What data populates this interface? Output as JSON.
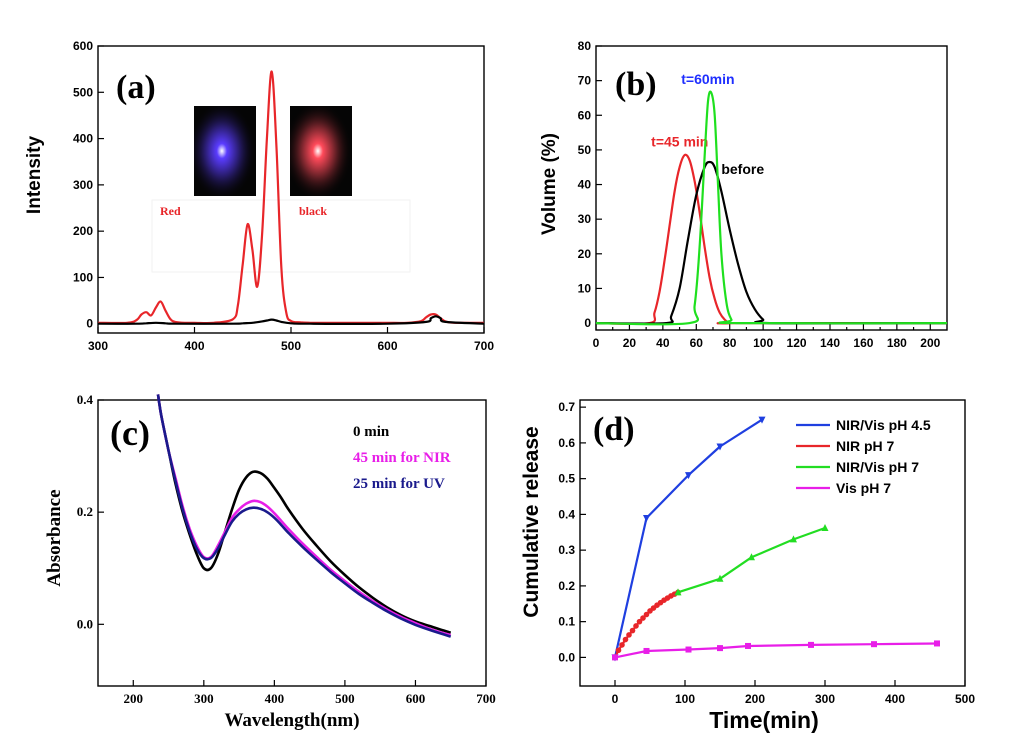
{
  "figure": {
    "panels": [
      "a",
      "b",
      "c",
      "d"
    ]
  },
  "chart_data": [
    {
      "id": "a",
      "type": "line",
      "panel_label": "(a)",
      "xlabel": "",
      "ylabel": "Intensity",
      "xlim": [
        300,
        700
      ],
      "ylim": [
        -20,
        600
      ],
      "xticks": [
        300,
        400,
        500,
        600,
        700
      ],
      "yticks": [
        0,
        100,
        200,
        300,
        400,
        500,
        600
      ],
      "inset_labels": [
        "Red",
        "black"
      ],
      "inset_glow_colors": [
        "#5a3cff",
        "#ff4a5a"
      ],
      "series": [
        {
          "name": "Red",
          "color": "#e8262a",
          "x": [
            300,
            330,
            340,
            345,
            350,
            355,
            360,
            365,
            370,
            375,
            380,
            390,
            400,
            420,
            440,
            445,
            450,
            455,
            460,
            465,
            470,
            475,
            480,
            485,
            490,
            495,
            500,
            510,
            520,
            540,
            560,
            580,
            600,
            620,
            635,
            640,
            645,
            650,
            655,
            660,
            670,
            700
          ],
          "y": [
            2,
            2,
            8,
            20,
            25,
            18,
            35,
            48,
            28,
            10,
            4,
            2,
            2,
            2,
            10,
            40,
            130,
            215,
            160,
            80,
            190,
            400,
            545,
            380,
            120,
            25,
            6,
            3,
            2,
            2,
            2,
            2,
            2,
            2,
            6,
            14,
            20,
            20,
            12,
            5,
            2,
            2
          ]
        },
        {
          "name": "black",
          "color": "#000000",
          "x": [
            300,
            340,
            350,
            360,
            370,
            380,
            440,
            450,
            460,
            470,
            475,
            480,
            485,
            490,
            500,
            520,
            600,
            640,
            645,
            650,
            655,
            660,
            700
          ],
          "y": [
            0,
            0,
            1,
            2,
            1,
            0,
            0,
            1,
            2,
            5,
            7,
            9,
            7,
            4,
            1,
            0,
            0,
            4,
            12,
            16,
            12,
            4,
            0
          ]
        }
      ]
    },
    {
      "id": "b",
      "type": "line",
      "panel_label": "(b)",
      "xlabel": "",
      "ylabel": "Volume (%)",
      "xlim": [
        0,
        210
      ],
      "ylim": [
        -2,
        80
      ],
      "xticks": [
        0,
        10,
        20,
        30,
        40,
        50,
        60,
        70,
        80,
        90,
        100,
        110,
        120,
        130,
        140,
        150,
        160,
        170,
        180,
        190,
        200
      ],
      "xticklabels": [
        "0",
        "",
        "20",
        "",
        "40",
        "",
        "60",
        "",
        "80",
        "",
        "100",
        "",
        "120",
        "",
        "140",
        "",
        "160",
        "",
        "180",
        "",
        "200"
      ],
      "yticks": [
        0,
        10,
        20,
        30,
        40,
        50,
        60,
        70,
        80
      ],
      "series": [
        {
          "name": "t=45 min",
          "color": "#e8262a",
          "label_at": [
            33,
            51
          ],
          "x": [
            0,
            32,
            35,
            38,
            41,
            44,
            47,
            50,
            53,
            56,
            59,
            62,
            65,
            68,
            71,
            74,
            77,
            80,
            83,
            210
          ],
          "y": [
            0,
            0,
            3,
            9,
            18,
            28,
            38,
            45,
            48.5,
            47,
            41,
            32,
            22,
            13,
            7,
            3,
            1,
            0,
            0,
            0
          ]
        },
        {
          "name": "before",
          "color": "#000000",
          "label_at": [
            75,
            43
          ],
          "x": [
            0,
            42,
            45,
            50,
            55,
            60,
            65,
            68,
            71,
            75,
            80,
            85,
            90,
            95,
            100,
            104,
            210
          ],
          "y": [
            0,
            0,
            2,
            10,
            24,
            37,
            45,
            46.5,
            45,
            38,
            27,
            17,
            9,
            4,
            1,
            0,
            0
          ]
        },
        {
          "name": "t=60min",
          "color": "#1fe01f",
          "label_at": [
            51,
            69
          ],
          "label_color": "#1f2fff",
          "x": [
            0,
            56,
            59,
            62,
            65,
            67,
            69,
            71,
            73,
            75,
            78,
            81,
            84,
            210
          ],
          "y": [
            0,
            0,
            5,
            22,
            48,
            64,
            66.5,
            60,
            40,
            20,
            6,
            1,
            0,
            0
          ]
        }
      ]
    },
    {
      "id": "c",
      "type": "line",
      "panel_label": "(c)",
      "xlabel": "Wavelength(nm)",
      "ylabel": "Absorbance",
      "xlim": [
        150,
        700
      ],
      "ylim": [
        -0.11,
        0.4
      ],
      "xticks": [
        200,
        300,
        400,
        500,
        600,
        700
      ],
      "yticks": [
        0.0,
        0.2,
        0.4
      ],
      "yticklabels": [
        "0.0",
        "0.2",
        "0.4"
      ],
      "series": [
        {
          "name": "0 min",
          "color": "#000000",
          "label_color": "#000000",
          "x": [
            235,
            240,
            250,
            260,
            270,
            280,
            290,
            300,
            310,
            320,
            330,
            340,
            350,
            360,
            370,
            380,
            390,
            400,
            410,
            420,
            440,
            460,
            480,
            500,
            520,
            540,
            560,
            580,
            600,
            620,
            640,
            650
          ],
          "y": [
            0.41,
            0.37,
            0.31,
            0.25,
            0.2,
            0.16,
            0.125,
            0.1,
            0.1,
            0.125,
            0.165,
            0.205,
            0.24,
            0.262,
            0.272,
            0.27,
            0.26,
            0.243,
            0.225,
            0.205,
            0.17,
            0.14,
            0.112,
            0.088,
            0.066,
            0.047,
            0.03,
            0.016,
            0.005,
            -0.003,
            -0.011,
            -0.015
          ]
        },
        {
          "name": "45 min for NIR",
          "color": "#e81ee8",
          "label_color": "#e81ee8",
          "x": [
            235,
            240,
            250,
            260,
            270,
            280,
            290,
            300,
            310,
            320,
            330,
            340,
            350,
            360,
            370,
            380,
            390,
            400,
            410,
            420,
            440,
            460,
            480,
            500,
            520,
            540,
            560,
            580,
            600,
            620,
            640,
            650
          ],
          "y": [
            0.41,
            0.37,
            0.31,
            0.26,
            0.21,
            0.17,
            0.14,
            0.12,
            0.12,
            0.14,
            0.165,
            0.19,
            0.205,
            0.215,
            0.22,
            0.218,
            0.21,
            0.198,
            0.184,
            0.17,
            0.144,
            0.12,
            0.097,
            0.077,
            0.058,
            0.041,
            0.026,
            0.013,
            0.002,
            -0.008,
            -0.016,
            -0.019
          ]
        },
        {
          "name": "25 min for UV",
          "color": "#1a1a8c",
          "label_color": "#1a1a8c",
          "x": [
            235,
            240,
            250,
            260,
            270,
            280,
            290,
            300,
            310,
            320,
            330,
            340,
            350,
            360,
            370,
            380,
            390,
            400,
            410,
            420,
            440,
            460,
            480,
            500,
            520,
            540,
            560,
            580,
            600,
            620,
            640,
            650
          ],
          "y": [
            0.41,
            0.37,
            0.31,
            0.255,
            0.205,
            0.165,
            0.135,
            0.118,
            0.118,
            0.135,
            0.16,
            0.183,
            0.197,
            0.205,
            0.208,
            0.206,
            0.2,
            0.19,
            0.177,
            0.163,
            0.138,
            0.115,
            0.093,
            0.073,
            0.054,
            0.038,
            0.023,
            0.01,
            -0.001,
            -0.01,
            -0.018,
            -0.022
          ]
        }
      ]
    },
    {
      "id": "d",
      "type": "line",
      "panel_label": "(d)",
      "xlabel": "Time(min)",
      "ylabel": "Cumulative release",
      "xlim": [
        -50,
        500
      ],
      "ylim": [
        -0.08,
        0.72
      ],
      "xticks": [
        0,
        100,
        200,
        300,
        400,
        500
      ],
      "yticks": [
        0.0,
        0.1,
        0.2,
        0.3,
        0.4,
        0.5,
        0.6,
        0.7
      ],
      "yticklabels": [
        "0.0",
        "0.1",
        "0.2",
        "0.3",
        "0.4",
        "0.5",
        "0.6",
        "0.7"
      ],
      "legend_position": "top-right",
      "series": [
        {
          "name": "NIR/Vis pH 4.5",
          "color": "#1f3fe0",
          "marker": "triangle-down",
          "x": [
            0,
            45,
            105,
            150,
            210
          ],
          "y": [
            0.0,
            0.39,
            0.51,
            0.59,
            0.665
          ]
        },
        {
          "name": "NIR pH 7",
          "color": "#e8262a",
          "marker": "circle",
          "x": [
            0,
            5,
            10,
            15,
            20,
            25,
            30,
            35,
            40,
            45,
            50,
            55,
            60,
            65,
            70,
            75,
            80,
            85,
            90
          ],
          "y": [
            0.0,
            0.02,
            0.035,
            0.05,
            0.063,
            0.075,
            0.088,
            0.1,
            0.11,
            0.12,
            0.13,
            0.138,
            0.146,
            0.153,
            0.16,
            0.166,
            0.172,
            0.177,
            0.182
          ]
        },
        {
          "name": "NIR/Vis pH 7",
          "color": "#22dd22",
          "marker": "triangle-up",
          "x": [
            90,
            150,
            195,
            255,
            300
          ],
          "y": [
            0.182,
            0.22,
            0.28,
            0.33,
            0.362
          ]
        },
        {
          "name": "Vis pH 7",
          "color": "#e81ee8",
          "marker": "square",
          "x": [
            0,
            45,
            105,
            150,
            190,
            280,
            370,
            460
          ],
          "y": [
            0.0,
            0.018,
            0.022,
            0.026,
            0.032,
            0.035,
            0.037,
            0.039
          ]
        }
      ]
    }
  ]
}
